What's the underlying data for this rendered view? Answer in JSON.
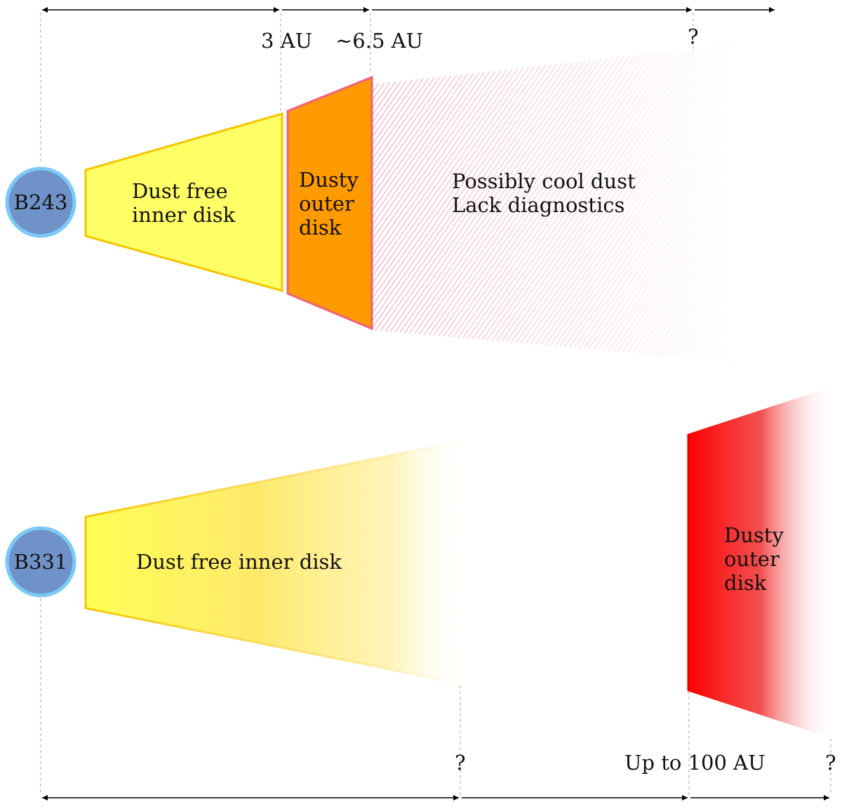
{
  "colors": {
    "star_fill": "#6f93c8",
    "star_stroke": "#7cc9f7",
    "inner_disk_fill": "#ffff66",
    "inner_disk_stroke": "#f5c400",
    "outer_disk_b243_fill": "#ff9a00",
    "outer_disk_b243_stroke": "#f0607a",
    "cool_dust_hatch": "#f07080",
    "outer_disk_b331_fill": "#ff0000"
  },
  "b243": {
    "star_label": "B243",
    "inner_disk_label": [
      "Dust free",
      "inner disk"
    ],
    "outer_disk_label": [
      "Dusty",
      "outer",
      "disk"
    ],
    "cool_dust_label": [
      "Possibly cool dust",
      "Lack diagnostics"
    ],
    "scale_labels": {
      "inner_edge": "3 AU",
      "outer_edge": "~6.5 AU",
      "unknown": "?"
    }
  },
  "b331": {
    "star_label": "B331",
    "inner_disk_label": "Dust free inner disk",
    "outer_disk_label": [
      "Dusty",
      "outer",
      "disk"
    ],
    "scale_labels": {
      "inner_edge": "?",
      "outer_edge": "Up to 100 AU",
      "unknown": "?"
    }
  }
}
